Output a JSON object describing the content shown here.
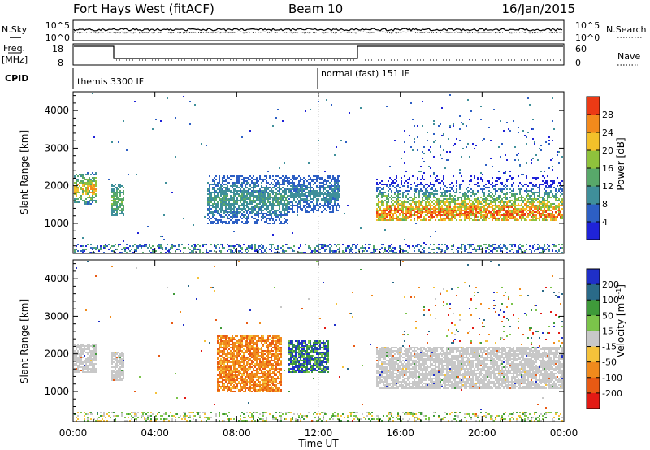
{
  "header": {
    "station": "Fort Hays West (fitACF)",
    "beam": "Beam 10",
    "date": "16/Jan/2015"
  },
  "top_panels": {
    "nsky_label": "N.Sky",
    "nsearch_label": "N.Search",
    "noise_ticks_left": [
      "10^5",
      "10^0"
    ],
    "noise_ticks_right": [
      "10^5",
      "10^0"
    ],
    "freq_label_1": "Freq.",
    "freq_label_2": "[MHz]",
    "freq_ticks": [
      "18",
      "8"
    ],
    "nave_label": "Nave",
    "nave_ticks": [
      "60",
      "0"
    ],
    "cpid_label": "CPID",
    "cpid_modes": [
      {
        "text": "themis 3300 IF",
        "start_hour": 0
      },
      {
        "text": "normal (fast) 151 IF",
        "start_hour": 12
      }
    ]
  },
  "chart_data": [
    {
      "type": "heatmap",
      "name": "power",
      "ylabel": "Slant Range [km]",
      "ylim": [
        200,
        4500
      ],
      "yticks": [
        1000,
        2000,
        3000,
        4000
      ],
      "xlim": [
        0,
        24
      ],
      "xticks": [
        0,
        4,
        8,
        12,
        16,
        20,
        24
      ],
      "xticklabels": [
        "00:00",
        "04:00",
        "08:00",
        "12:00",
        "16:00",
        "20:00",
        "00:00"
      ],
      "colorbar": {
        "label": "Power [dB]",
        "range": [
          0,
          32
        ],
        "ticks": [
          4,
          8,
          12,
          16,
          20,
          24,
          28
        ],
        "colors": [
          "#1f23d8",
          "#2d5fc4",
          "#3f8f9a",
          "#58a86a",
          "#8fc23c",
          "#f3c12a",
          "#f38a1c",
          "#ec3a15"
        ]
      },
      "regions": [
        {
          "t": [
            0.0,
            1.1
          ],
          "r": [
            1500,
            2400
          ],
          "level": "mid-high"
        },
        {
          "t": [
            1.8,
            2.5
          ],
          "r": [
            1200,
            2100
          ],
          "level": "mid"
        },
        {
          "t": [
            6.5,
            10.5
          ],
          "r": [
            1000,
            2300
          ],
          "level": "low-mid"
        },
        {
          "t": [
            10.5,
            13.0
          ],
          "r": [
            1300,
            2300
          ],
          "level": "low"
        },
        {
          "t": [
            14.8,
            24.0
          ],
          "r": [
            1100,
            2300
          ],
          "level": "high",
          "peak_range_km": 1300
        }
      ]
    },
    {
      "type": "heatmap",
      "name": "velocity",
      "ylabel": "Slant Range [km]",
      "xlabel": "Time UT",
      "ylim": [
        200,
        4500
      ],
      "yticks": [
        1000,
        2000,
        3000,
        4000
      ],
      "xlim": [
        0,
        24
      ],
      "xticks": [
        0,
        4,
        8,
        12,
        16,
        20,
        24
      ],
      "xticklabels": [
        "00:00",
        "04:00",
        "08:00",
        "12:00",
        "16:00",
        "20:00",
        "00:00"
      ],
      "colorbar": {
        "label": "Velocity [m s",
        "label_sup": "-1",
        "label_end": "]",
        "range": [
          -250,
          250
        ],
        "tick_values": [
          200,
          100,
          50,
          15,
          -15,
          -50,
          -100,
          -200
        ],
        "tick_labels": [
          "200",
          "100",
          "50",
          "15",
          "-15",
          "-50",
          "-100",
          "-200"
        ],
        "colors": [
          "#1f2fc8",
          "#2a6a88",
          "#3f9a3a",
          "#7bc44a",
          "#c8c8c8",
          "#f5c23a",
          "#f08a1c",
          "#e85a14",
          "#e21a14"
        ]
      },
      "regions": [
        {
          "t": [
            0.0,
            1.1
          ],
          "r": [
            1500,
            2300
          ],
          "velocity": "ground"
        },
        {
          "t": [
            1.8,
            2.5
          ],
          "r": [
            1300,
            2100
          ],
          "velocity": "ground"
        },
        {
          "t": [
            7.0,
            10.2
          ],
          "r": [
            1000,
            2500
          ],
          "velocity": "-50 to -100"
        },
        {
          "t": [
            10.5,
            12.5
          ],
          "r": [
            1500,
            2400
          ],
          "velocity": "15 to 200"
        },
        {
          "t": [
            14.8,
            24.0
          ],
          "r": [
            1100,
            2200
          ],
          "velocity": "ground"
        }
      ]
    }
  ]
}
